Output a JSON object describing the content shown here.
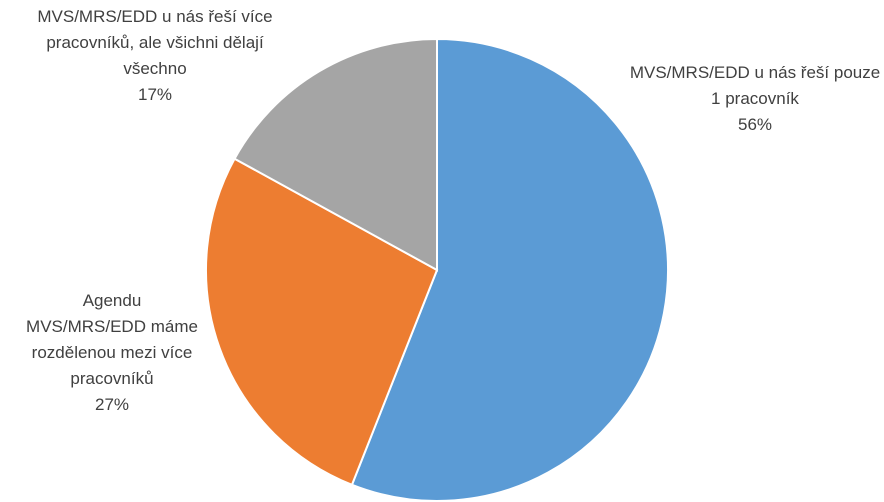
{
  "chart_data": {
    "type": "pie",
    "categories": [
      "MVS/MRS/EDD u nás řeší pouze 1 pracovník",
      "Agendu MVS/MRS/EDD máme rozdělenou mezi více pracovníků",
      "MVS/MRS/EDD u nás řeší více pracovníků, ale všichni dělají všechno"
    ],
    "values": [
      56,
      27,
      17
    ],
    "value_labels": [
      "56%",
      "27%",
      "17%"
    ],
    "colors": [
      "#5b9bd5",
      "#ed7d31",
      "#a5a5a5"
    ]
  }
}
